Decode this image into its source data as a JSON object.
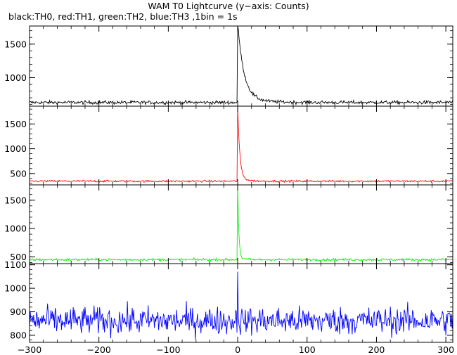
{
  "title": "WAM T0 Lightcurve (y−axis: Counts)",
  "subtitle": "black:TH0, red:TH1, green:TH2, blue:TH3 ,1bin = 1s",
  "chart_data": {
    "type": "line",
    "title": "WAM T0 Lightcurve (y−axis: Counts)",
    "xlim": [
      -300,
      310
    ],
    "x_ticks": [
      -300,
      -200,
      -100,
      0,
      100,
      200,
      300
    ],
    "x_tick_labels": [
      "−300",
      "−200",
      "−100",
      "0",
      "100",
      "200",
      "300"
    ],
    "grid": false,
    "panels": [
      {
        "name": "TH0",
        "color": "#000000",
        "ylim": [
          575,
          1770
        ],
        "y_ticks": [
          1000,
          1500
        ],
        "y_tick_labels": [
          "1000",
          "1500"
        ],
        "background": 630,
        "noise": 13,
        "peak": 1760,
        "peak_time": 0,
        "decay_tau": 9,
        "slow_tail": 55,
        "slow_tau": 30
      },
      {
        "name": "TH1",
        "color": "#ff0000",
        "ylim": [
          270,
          1860
        ],
        "y_ticks": [
          500,
          1000,
          1500
        ],
        "y_tick_labels": [
          "500",
          "1000",
          "1500"
        ],
        "background": 345,
        "noise": 10,
        "peak": 1800,
        "peak_time": 0,
        "decay_tau": 3,
        "slow_tail": 50,
        "slow_tau": 12
      },
      {
        "name": "TH2",
        "color": "#00ee00",
        "ylim": [
          380,
          1770
        ],
        "y_ticks": [
          500,
          1000,
          1500
        ],
        "y_tick_labels": [
          "500",
          "1000",
          "1500"
        ],
        "background": 450,
        "noise": 11,
        "peak": 1790,
        "peak_time": 0,
        "decay_tau": 1.6,
        "slow_tail": 30,
        "slow_tau": 6
      },
      {
        "name": "TH3",
        "color": "#0000ff",
        "ylim": [
          770,
          1105
        ],
        "y_ticks": [
          800,
          900,
          1000,
          1100
        ],
        "y_tick_labels": [
          "800",
          "900",
          "1000",
          "1100"
        ],
        "background": 862,
        "noise": 30,
        "peak": 1100,
        "peak_time": 0,
        "decay_tau": 0.4,
        "slow_tail": 0,
        "slow_tau": 1
      }
    ]
  }
}
